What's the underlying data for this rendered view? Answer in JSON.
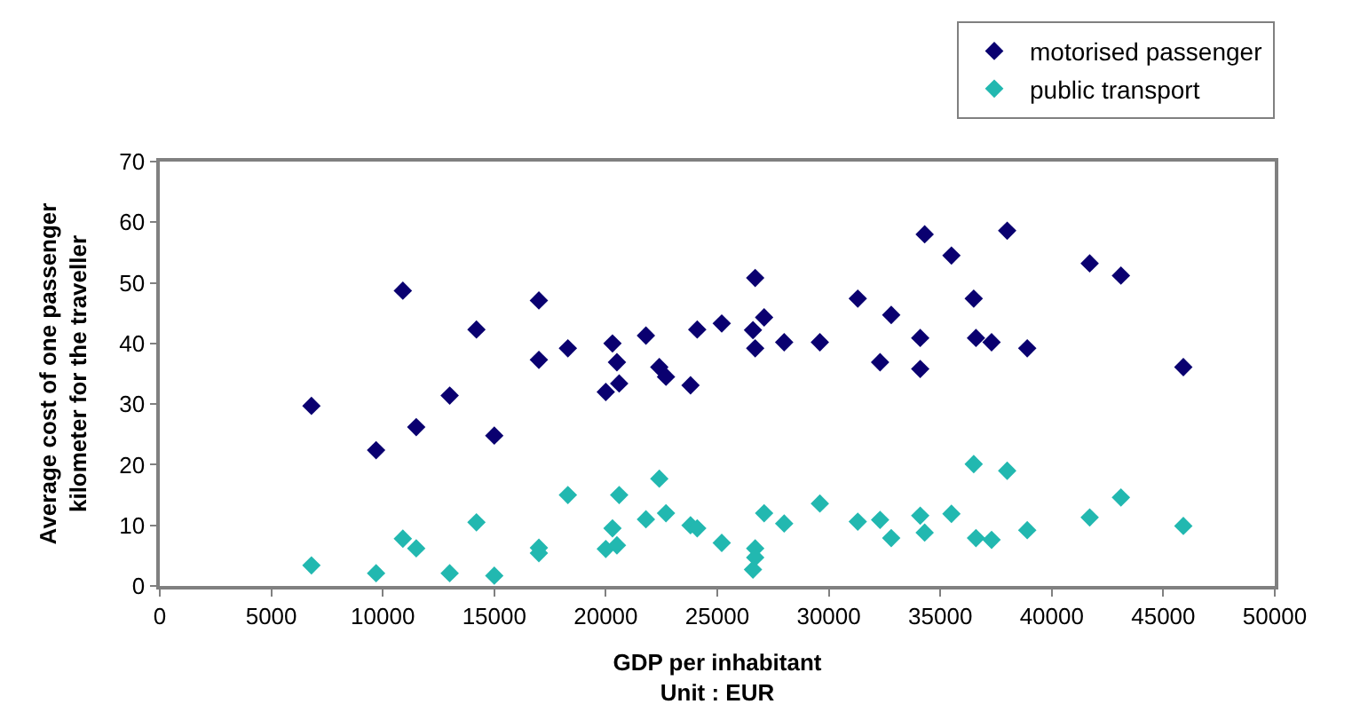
{
  "chart_data": {
    "type": "scatter",
    "xlabel": "GDP per inhabitant\nUnit : EUR",
    "ylabel": "Average cost of one passenger\nkilometer for the traveller",
    "xlim": [
      0,
      50000
    ],
    "xticks": [
      0,
      5000,
      10000,
      15000,
      20000,
      25000,
      30000,
      35000,
      40000,
      45000,
      50000
    ],
    "ylim": [
      0,
      70
    ],
    "yticks": [
      0,
      10,
      20,
      30,
      40,
      50,
      60,
      70
    ],
    "grid": false,
    "legend": "top right",
    "marker": "diamond",
    "series": [
      {
        "name": "motorised passenger",
        "color": "#0a0070",
        "x": [
          6800,
          9700,
          10900,
          11500,
          13000,
          14200,
          15000,
          17000,
          17000,
          18300,
          20000,
          20300,
          20500,
          20600,
          21800,
          22400,
          22700,
          23800,
          24100,
          25200,
          26600,
          26700,
          26700,
          27100,
          28000,
          29600,
          31300,
          32300,
          32800,
          34100,
          34100,
          34300,
          35500,
          36500,
          36600,
          37300,
          38000,
          38900,
          41700,
          43100,
          45900
        ],
        "values": [
          29.7,
          22.4,
          48.7,
          26.2,
          31.4,
          42.3,
          24.8,
          47.1,
          37.3,
          39.2,
          32.0,
          40.0,
          36.9,
          33.4,
          41.3,
          36.1,
          34.5,
          33.1,
          42.3,
          43.3,
          42.2,
          50.8,
          39.2,
          44.3,
          40.2,
          40.2,
          47.4,
          36.9,
          44.7,
          40.9,
          35.8,
          58.0,
          54.5,
          47.4,
          40.9,
          40.2,
          58.6,
          39.2,
          53.2,
          51.2,
          36.1
        ]
      },
      {
        "name": "public transport",
        "color": "#22b8b0",
        "x": [
          6800,
          9700,
          10900,
          11500,
          13000,
          14200,
          15000,
          17000,
          17000,
          18300,
          20000,
          20300,
          20500,
          20600,
          21800,
          22400,
          22700,
          23800,
          24100,
          25200,
          26700,
          26700,
          26600,
          27100,
          28000,
          29600,
          31300,
          32300,
          32800,
          34100,
          34300,
          35500,
          36500,
          36600,
          37300,
          38000,
          38900,
          41700,
          43100,
          45900
        ],
        "values": [
          3.4,
          2.1,
          7.8,
          6.2,
          2.1,
          10.5,
          1.7,
          6.3,
          5.4,
          15.0,
          6.1,
          9.5,
          6.7,
          15.0,
          11.0,
          17.7,
          12.0,
          10.0,
          9.5,
          7.1,
          6.2,
          4.7,
          2.7,
          12.0,
          10.3,
          13.6,
          10.6,
          10.9,
          7.9,
          11.6,
          8.8,
          11.9,
          20.1,
          7.9,
          7.6,
          19.0,
          9.2,
          11.3,
          14.6,
          9.9
        ]
      }
    ]
  }
}
